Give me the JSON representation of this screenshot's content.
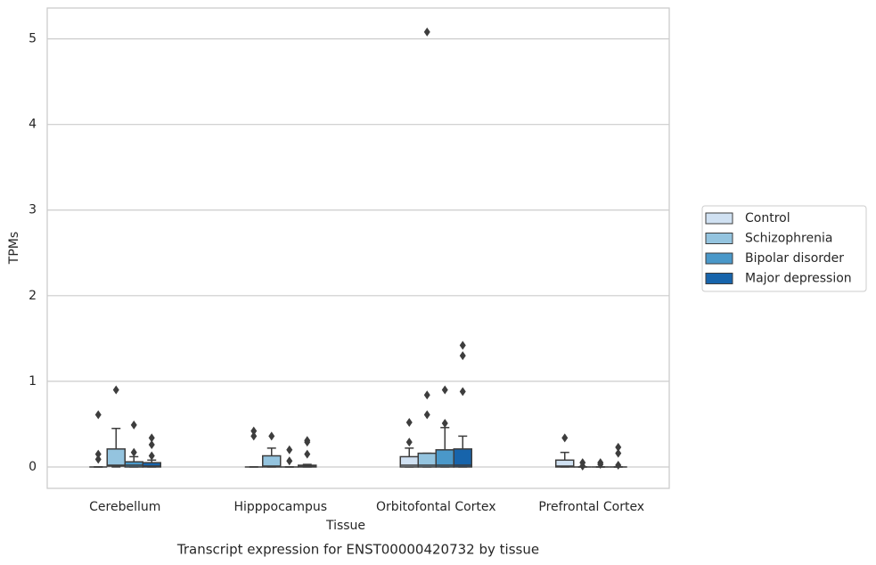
{
  "chart_data": {
    "type": "box",
    "x_label": "Tissue",
    "y_label": "TPMs",
    "caption": "Transcript expression for ENST00000420732 by tissue",
    "categories": [
      "Cerebellum",
      "Hipppocampus",
      "Orbitofontal Cortex",
      "Prefrontal Cortex"
    ],
    "ylim": [
      -0.25,
      5.36
    ],
    "yticks": [
      0,
      1,
      2,
      3,
      4,
      5
    ],
    "grid": true,
    "legend": "right",
    "series": [
      {
        "name": "Control",
        "color": "#d0e1f2",
        "boxes": [
          {
            "whislo": 0,
            "q1": 0,
            "median": 0,
            "q3": 0,
            "whishi": 0,
            "fliers": [
              0.61,
              0.15,
              0.09
            ]
          },
          {
            "whislo": 0,
            "q1": 0,
            "median": 0,
            "q3": 0,
            "whishi": 0,
            "fliers": [
              0.42,
              0.36
            ]
          },
          {
            "whislo": 0,
            "q1": 0,
            "median": 0.02,
            "q3": 0.12,
            "whishi": 0.22,
            "fliers": [
              0.52,
              0.29
            ]
          },
          {
            "whislo": 0,
            "q1": 0,
            "median": 0.01,
            "q3": 0.08,
            "whishi": 0.17,
            "fliers": [
              0.34
            ]
          }
        ]
      },
      {
        "name": "Schizophrenia",
        "color": "#94c4df",
        "boxes": [
          {
            "whislo": 0,
            "q1": 0.01,
            "median": 0.02,
            "q3": 0.21,
            "whishi": 0.45,
            "fliers": [
              0.9
            ]
          },
          {
            "whislo": 0,
            "q1": 0,
            "median": 0.01,
            "q3": 0.13,
            "whishi": 0.22,
            "fliers": [
              0.36
            ]
          },
          {
            "whislo": 0,
            "q1": 0,
            "median": 0.02,
            "q3": 0.16,
            "whishi": 0.16,
            "fliers": [
              5.08,
              0.84,
              0.61
            ]
          },
          {
            "whislo": 0,
            "q1": 0,
            "median": 0,
            "q3": 0,
            "whishi": 0,
            "fliers": [
              0.05,
              0.01
            ]
          }
        ]
      },
      {
        "name": "Bipolar disorder",
        "color": "#4a98c9",
        "boxes": [
          {
            "whislo": 0,
            "q1": 0,
            "median": 0.02,
            "q3": 0.06,
            "whishi": 0.12,
            "fliers": [
              0.49,
              0.17
            ]
          },
          {
            "whislo": 0,
            "q1": 0,
            "median": 0,
            "q3": 0,
            "whishi": 0,
            "fliers": [
              0.2,
              0.07
            ]
          },
          {
            "whislo": 0,
            "q1": 0,
            "median": 0.02,
            "q3": 0.2,
            "whishi": 0.46,
            "fliers": [
              0.9,
              0.51
            ]
          },
          {
            "whislo": 0,
            "q1": 0,
            "median": 0,
            "q3": 0,
            "whishi": 0,
            "fliers": [
              0.05,
              0.03
            ]
          }
        ]
      },
      {
        "name": "Major depression",
        "color": "#1764ab",
        "boxes": [
          {
            "whislo": 0,
            "q1": 0,
            "median": 0.01,
            "q3": 0.05,
            "whishi": 0.08,
            "fliers": [
              0.34,
              0.26,
              0.13
            ]
          },
          {
            "whislo": 0,
            "q1": 0,
            "median": 0.01,
            "q3": 0.02,
            "whishi": 0.03,
            "fliers": [
              0.31,
              0.29,
              0.15
            ]
          },
          {
            "whislo": 0,
            "q1": 0,
            "median": 0.02,
            "q3": 0.21,
            "whishi": 0.36,
            "fliers": [
              1.42,
              1.3,
              0.88
            ]
          },
          {
            "whislo": 0,
            "q1": 0,
            "median": 0,
            "q3": 0,
            "whishi": 0,
            "fliers": [
              0.23,
              0.16,
              0.02
            ]
          }
        ]
      }
    ]
  }
}
